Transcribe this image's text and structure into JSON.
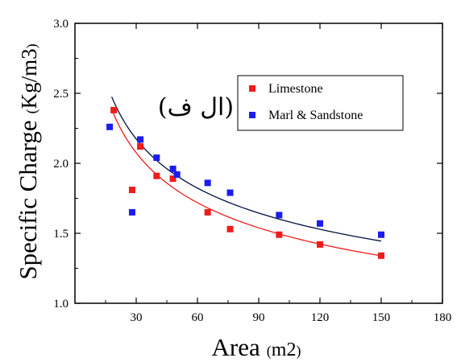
{
  "chart_data": {
    "type": "scatter",
    "xlabel": "Area",
    "xlabel_unit": "m2",
    "ylabel": "Specific Charge",
    "ylabel_unit": "Kg/m3",
    "xlim": [
      0,
      180
    ],
    "ylim": [
      1.0,
      3.0
    ],
    "x_ticks": [
      30,
      60,
      90,
      120,
      150,
      180
    ],
    "y_ticks": [
      1.0,
      1.5,
      2.0,
      2.5,
      3.0
    ],
    "x_tick_labels": [
      "30",
      "60",
      "90",
      "120",
      "150",
      "180"
    ],
    "y_tick_labels": [
      "1.0",
      "1.5",
      "2.0",
      "2.5",
      "3.0"
    ],
    "annotation": "(ال ف)",
    "legend_position": "top-right",
    "grid": false,
    "series": [
      {
        "name": "Limestone",
        "color": "#ee1c1c",
        "marker": "square",
        "points": [
          {
            "x": 19,
            "y": 2.38
          },
          {
            "x": 28,
            "y": 1.81
          },
          {
            "x": 32,
            "y": 2.12
          },
          {
            "x": 40,
            "y": 1.91
          },
          {
            "x": 48,
            "y": 1.89
          },
          {
            "x": 65,
            "y": 1.65
          },
          {
            "x": 76,
            "y": 1.53
          },
          {
            "x": 100,
            "y": 1.49
          },
          {
            "x": 120,
            "y": 1.42
          },
          {
            "x": 150,
            "y": 1.34
          }
        ],
        "fit": {
          "type": "power",
          "x_range": [
            18,
            150
          ],
          "color": "#ee1c1c",
          "samples": [
            [
              18,
              2.38
            ],
            [
              30,
              2.08
            ],
            [
              60,
              1.72
            ],
            [
              90,
              1.54
            ],
            [
              120,
              1.42
            ],
            [
              150,
              1.34
            ]
          ]
        }
      },
      {
        "name": "Marl & Sandstone",
        "color": "#1c1cee",
        "marker": "square",
        "points": [
          {
            "x": 17,
            "y": 2.26
          },
          {
            "x": 28,
            "y": 1.65
          },
          {
            "x": 32,
            "y": 2.17
          },
          {
            "x": 40,
            "y": 2.04
          },
          {
            "x": 48,
            "y": 1.96
          },
          {
            "x": 50,
            "y": 1.92
          },
          {
            "x": 65,
            "y": 1.86
          },
          {
            "x": 76,
            "y": 1.79
          },
          {
            "x": 100,
            "y": 1.63
          },
          {
            "x": 120,
            "y": 1.57
          },
          {
            "x": 150,
            "y": 1.49
          }
        ],
        "fit": {
          "type": "power",
          "x_range": [
            18,
            150
          ],
          "color": "#001040",
          "samples": [
            [
              18,
              2.49
            ],
            [
              30,
              2.16
            ],
            [
              60,
              1.82
            ],
            [
              90,
              1.64
            ],
            [
              120,
              1.53
            ],
            [
              150,
              1.45
            ]
          ]
        }
      }
    ]
  }
}
